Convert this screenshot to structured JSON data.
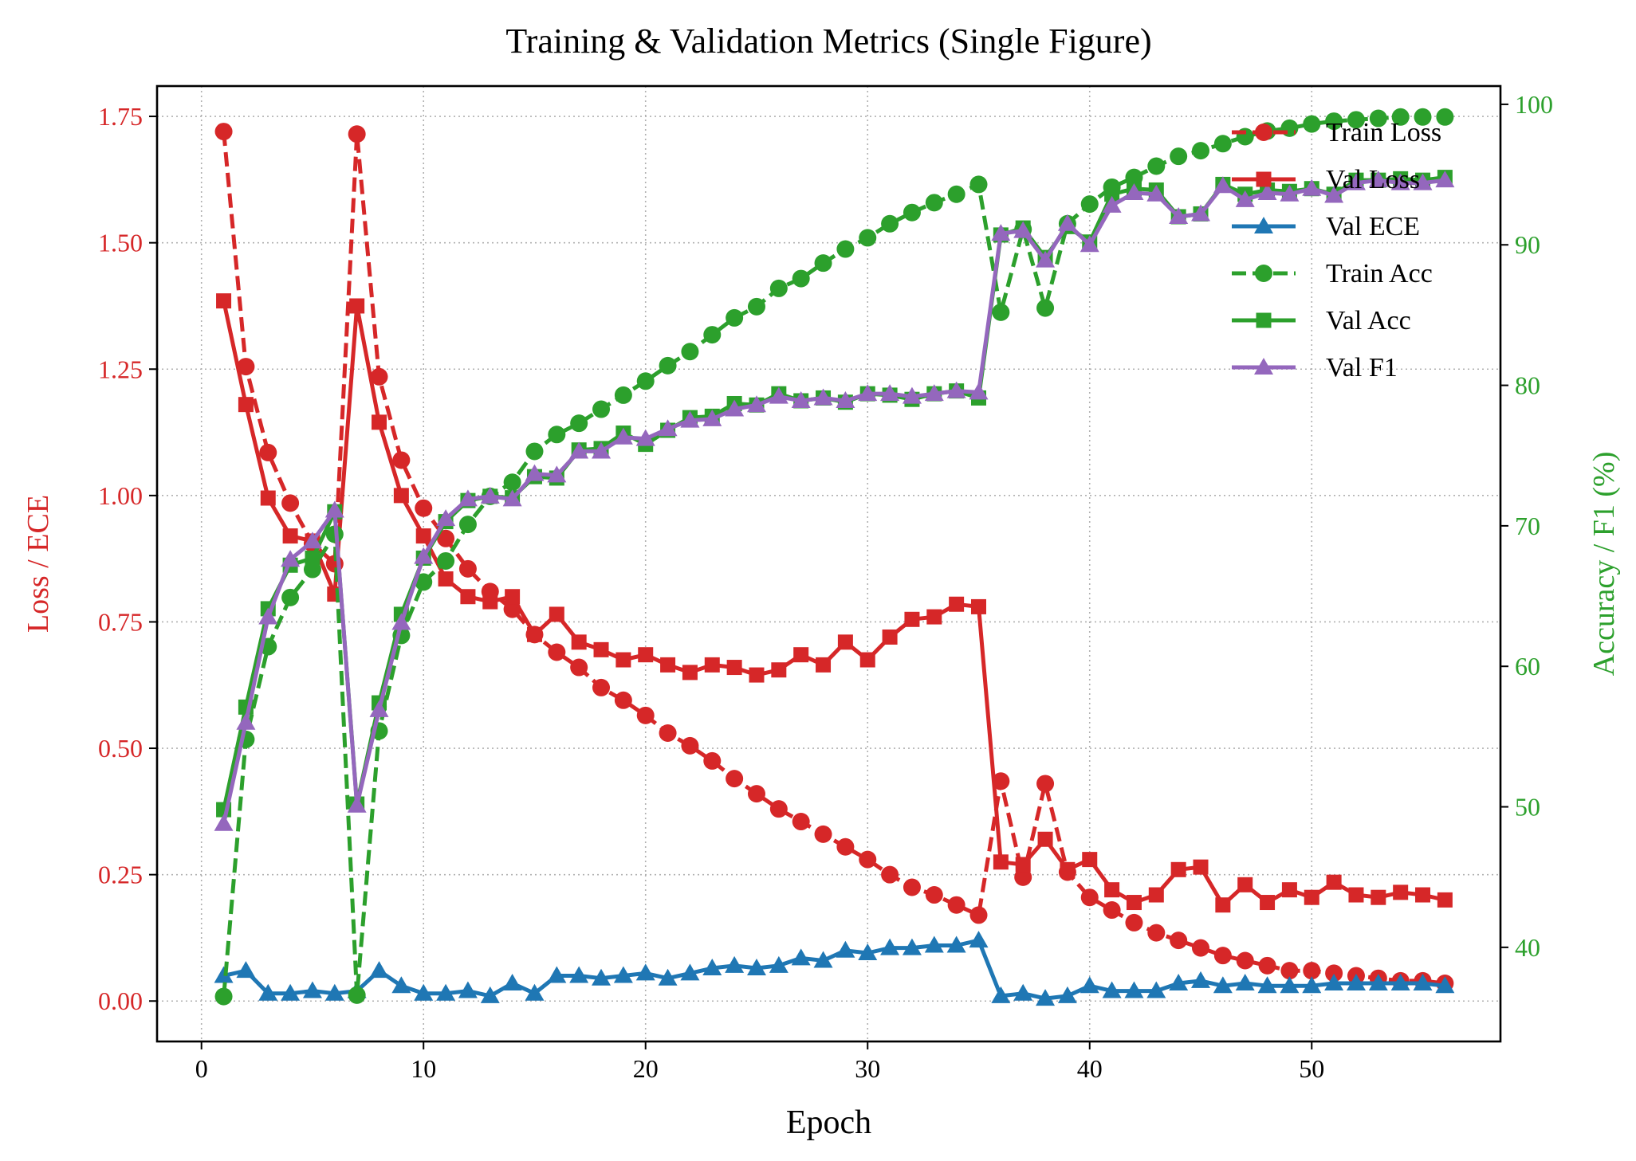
{
  "chart_data": {
    "type": "line",
    "title": "Training & Validation Metrics (Single Figure)",
    "xlabel": "Epoch",
    "ylabel_left": "Loss / ECE",
    "ylabel_right": "Accuracy / F1 (%)",
    "xlim": [
      -2,
      58.5
    ],
    "ylim_left": [
      -0.08,
      1.81
    ],
    "ylim_right": [
      33.3,
      101.3
    ],
    "x_ticks": [
      0,
      10,
      20,
      30,
      40,
      50
    ],
    "y_left_ticks": [
      "0.00",
      "0.25",
      "0.50",
      "0.75",
      "1.00",
      "1.25",
      "1.50",
      "1.75"
    ],
    "y_right_ticks": [
      "40",
      "50",
      "60",
      "70",
      "80",
      "90",
      "100"
    ],
    "grid": true,
    "legend_position": "top-right",
    "colors": {
      "red": "#d62728",
      "blue": "#1f77b4",
      "green": "#2ca02c",
      "purple": "#9467bd",
      "left_axis": "#d62728",
      "right_axis": "#2ca02c"
    },
    "x": [
      1,
      2,
      3,
      4,
      5,
      6,
      7,
      8,
      9,
      10,
      11,
      12,
      13,
      14,
      15,
      16,
      17,
      18,
      19,
      20,
      21,
      22,
      23,
      24,
      25,
      26,
      27,
      28,
      29,
      30,
      31,
      32,
      33,
      34,
      35,
      36,
      37,
      38,
      39,
      40,
      41,
      42,
      43,
      44,
      45,
      46,
      47,
      48,
      49,
      50,
      51,
      52,
      53,
      54,
      55,
      56
    ],
    "series": [
      {
        "name": "Train Loss",
        "axis": "left",
        "color": "#d62728",
        "dash": true,
        "marker": "circle",
        "values": [
          1.72,
          1.255,
          1.085,
          0.985,
          0.905,
          0.865,
          1.715,
          1.235,
          1.07,
          0.975,
          0.915,
          0.855,
          0.81,
          0.775,
          0.725,
          0.69,
          0.66,
          0.62,
          0.595,
          0.565,
          0.53,
          0.505,
          0.475,
          0.44,
          0.41,
          0.38,
          0.355,
          0.33,
          0.305,
          0.28,
          0.25,
          0.225,
          0.21,
          0.19,
          0.17,
          0.435,
          0.245,
          0.43,
          0.255,
          0.205,
          0.18,
          0.155,
          0.135,
          0.12,
          0.105,
          0.09,
          0.08,
          0.07,
          0.06,
          0.06,
          0.055,
          0.05,
          0.045,
          0.04,
          0.04,
          0.035
        ]
      },
      {
        "name": "Val Loss",
        "axis": "left",
        "color": "#d62728",
        "dash": false,
        "marker": "square",
        "values": [
          1.385,
          1.18,
          0.995,
          0.92,
          0.91,
          0.805,
          1.375,
          1.145,
          1.0,
          0.92,
          0.835,
          0.8,
          0.79,
          0.8,
          0.725,
          0.765,
          0.71,
          0.695,
          0.675,
          0.685,
          0.665,
          0.65,
          0.665,
          0.66,
          0.645,
          0.655,
          0.685,
          0.665,
          0.71,
          0.675,
          0.72,
          0.755,
          0.76,
          0.785,
          0.78,
          0.275,
          0.27,
          0.32,
          0.26,
          0.28,
          0.22,
          0.195,
          0.21,
          0.26,
          0.265,
          0.19,
          0.23,
          0.195,
          0.22,
          0.205,
          0.235,
          0.21,
          0.205,
          0.215,
          0.21,
          0.2
        ]
      },
      {
        "name": "Val ECE",
        "axis": "left",
        "color": "#1f77b4",
        "dash": false,
        "marker": "triangle",
        "values": [
          0.05,
          0.06,
          0.015,
          0.015,
          0.02,
          0.015,
          0.02,
          0.06,
          0.03,
          0.015,
          0.015,
          0.02,
          0.01,
          0.035,
          0.015,
          0.05,
          0.05,
          0.045,
          0.05,
          0.055,
          0.045,
          0.055,
          0.065,
          0.07,
          0.065,
          0.07,
          0.085,
          0.08,
          0.1,
          0.095,
          0.105,
          0.105,
          0.11,
          0.11,
          0.12,
          0.01,
          0.015,
          0.005,
          0.01,
          0.03,
          0.02,
          0.02,
          0.02,
          0.035,
          0.04,
          0.03,
          0.035,
          0.03,
          0.03,
          0.03,
          0.035,
          0.035,
          0.035,
          0.035,
          0.035,
          0.03
        ]
      },
      {
        "name": "Train Acc",
        "axis": "right",
        "color": "#2ca02c",
        "dash": true,
        "marker": "circle",
        "values": [
          36.5,
          54.8,
          61.4,
          64.9,
          66.9,
          69.4,
          36.6,
          55.4,
          62.2,
          66.0,
          67.5,
          70.1,
          72.1,
          73.1,
          75.3,
          76.5,
          77.3,
          78.3,
          79.3,
          80.3,
          81.4,
          82.4,
          83.6,
          84.8,
          85.6,
          86.9,
          87.6,
          88.7,
          89.7,
          90.5,
          91.5,
          92.3,
          93.0,
          93.6,
          94.3,
          85.2,
          91.1,
          85.5,
          91.5,
          92.9,
          94.1,
          94.8,
          95.6,
          96.3,
          96.7,
          97.2,
          97.7,
          98.1,
          98.3,
          98.6,
          98.8,
          98.9,
          99.0,
          99.1,
          99.1,
          99.1
        ]
      },
      {
        "name": "Val Acc",
        "axis": "right",
        "color": "#2ca02c",
        "dash": false,
        "marker": "square",
        "values": [
          49.8,
          57.1,
          64.1,
          67.2,
          67.7,
          71.0,
          50.2,
          57.4,
          63.7,
          67.7,
          70.3,
          71.8,
          72.1,
          72.0,
          73.5,
          73.4,
          75.4,
          75.5,
          76.6,
          75.8,
          76.8,
          77.7,
          77.8,
          78.7,
          78.6,
          79.4,
          78.9,
          79.1,
          78.8,
          79.4,
          79.3,
          79.0,
          79.4,
          79.6,
          79.1,
          90.7,
          91.2,
          89.1,
          91.3,
          90.2,
          93.6,
          94.0,
          93.9,
          92.0,
          92.2,
          94.3,
          93.6,
          93.9,
          93.8,
          94.0,
          93.6,
          94.6,
          94.6,
          94.7,
          94.6,
          94.8
        ]
      },
      {
        "name": "Val F1",
        "axis": "right",
        "color": "#9467bd",
        "dash": false,
        "marker": "triangle",
        "values": [
          48.8,
          56.0,
          63.5,
          67.6,
          68.9,
          71.1,
          50.1,
          56.9,
          63.1,
          67.8,
          70.5,
          71.9,
          72.1,
          71.9,
          73.7,
          73.6,
          75.3,
          75.3,
          76.3,
          76.2,
          76.9,
          77.5,
          77.6,
          78.3,
          78.6,
          79.2,
          78.9,
          79.1,
          78.9,
          79.4,
          79.4,
          79.2,
          79.4,
          79.6,
          79.5,
          90.8,
          91.0,
          88.9,
          91.5,
          90.0,
          92.8,
          93.7,
          93.6,
          92.0,
          92.2,
          94.2,
          93.2,
          93.7,
          93.6,
          94.0,
          93.5,
          94.4,
          94.6,
          94.4,
          94.4,
          94.6
        ]
      }
    ]
  }
}
